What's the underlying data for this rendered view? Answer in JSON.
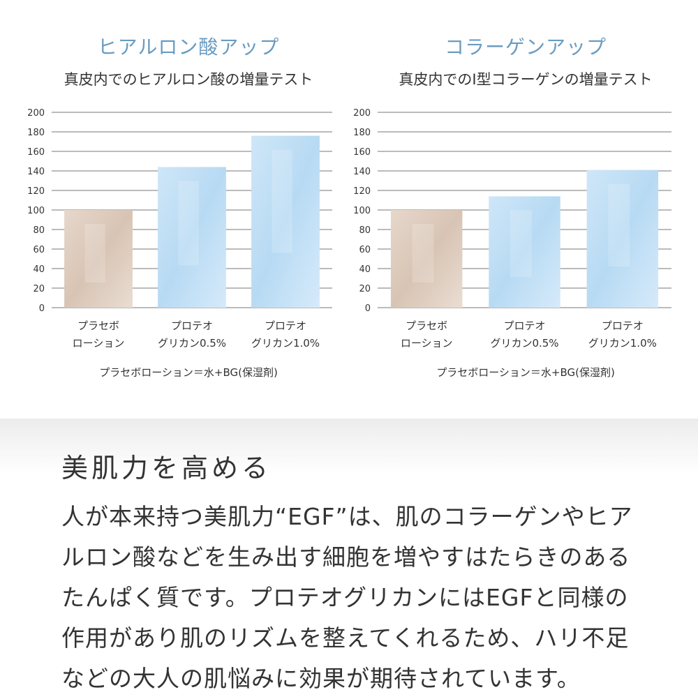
{
  "chart_data": [
    {
      "type": "bar",
      "title": "ヒアルロン酸アップ",
      "subtitle": "真皮内でのヒアルロン酸の増量テスト",
      "categories": [
        [
          "プラセボ",
          "ローション"
        ],
        [
          "プロテオ",
          "グリカン0.5%"
        ],
        [
          "プロテオ",
          "グリカン1.0%"
        ]
      ],
      "values": [
        100,
        144,
        176
      ],
      "ylim": [
        0,
        200
      ],
      "yticks": [
        0,
        20,
        40,
        60,
        80,
        100,
        120,
        140,
        160,
        180,
        200
      ],
      "grid": true,
      "note": "プラセボローション＝水+BG(保湿剤)",
      "colors": [
        "#d8c4b4",
        "#b7daf3",
        "#b7daf3"
      ]
    },
    {
      "type": "bar",
      "title": "コラーゲンアップ",
      "subtitle": "真皮内でのI型コラーゲンの増量テスト",
      "categories": [
        [
          "プラセボ",
          "ローション"
        ],
        [
          "プロテオ",
          "グリカン0.5%"
        ],
        [
          "プロテオ",
          "グリカン1.0%"
        ]
      ],
      "values": [
        100,
        114,
        141
      ],
      "ylim": [
        0,
        200
      ],
      "yticks": [
        0,
        20,
        40,
        60,
        80,
        100,
        120,
        140,
        160,
        180,
        200
      ],
      "grid": true,
      "note": "プラセボローション＝水+BG(保湿剤)",
      "colors": [
        "#d8c4b4",
        "#b7daf3",
        "#b7daf3"
      ]
    }
  ],
  "section": {
    "heading": "美肌力を高める",
    "body": "人が本来持つ美肌力“EGF”は、肌のコラーゲンやヒアルロン酸などを生み出す細胞を増やすはたらきのあるたんぱく質です。プロテオグリカンにはEGFと同様の作用があり肌のリズムを整えてくれるため、ハリ不足などの大人の肌悩みに効果が期待されています。"
  }
}
